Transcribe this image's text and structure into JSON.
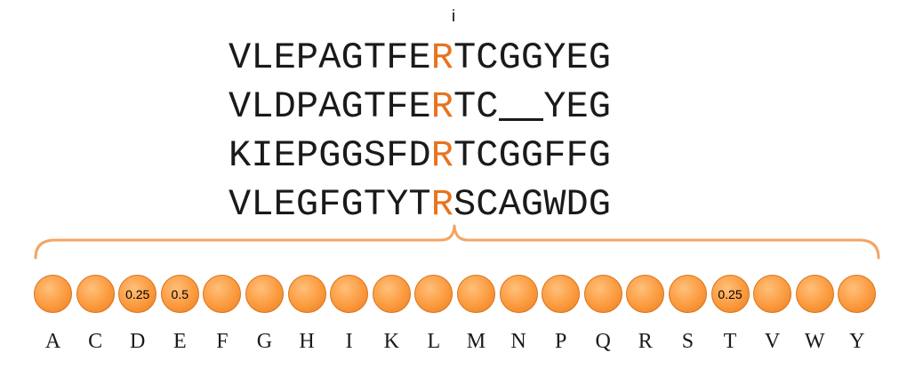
{
  "column_marker": "i",
  "highlight_column": 9,
  "highlight_color": "#e8731c",
  "circle_color": "#fb9a3e",
  "brace_color": "#f4a463",
  "sequences": [
    "VLEPAGTFERTCGGYEG",
    "VLDPAGTFERTC__YEG",
    "KIEPGGSFDRTCGGFFG",
    "VLEGFGTYTRSCAGWDG"
  ],
  "amino_acids": [
    "A",
    "C",
    "D",
    "E",
    "F",
    "G",
    "H",
    "I",
    "K",
    "L",
    "M",
    "N",
    "P",
    "Q",
    "R",
    "S",
    "T",
    "V",
    "W",
    "Y"
  ],
  "frequencies": [
    "",
    "",
    "0.25",
    "0.5",
    "",
    "",
    "",
    "",
    "",
    "",
    "",
    "",
    "",
    "",
    "",
    "",
    "0.25",
    "",
    "",
    ""
  ]
}
